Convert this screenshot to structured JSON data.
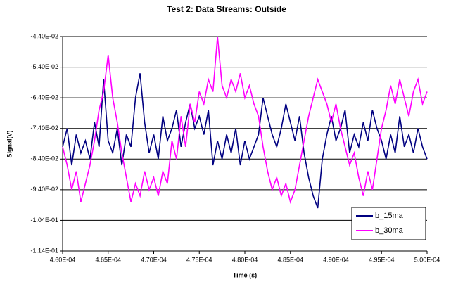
{
  "chart_data": {
    "type": "line",
    "title": "Test 2: Data Streams: Outside",
    "x_label": "Time (s)",
    "y_label": "Signal(V)",
    "x": [
      0.00046,
      0.0004605,
      0.000461,
      0.0004615,
      0.000462,
      0.0004625,
      0.000463,
      0.0004635,
      0.000464,
      0.0004645,
      0.000465,
      0.0004655,
      0.000466,
      0.0004665,
      0.000467,
      0.0004675,
      0.000468,
      0.0004685,
      0.000469,
      0.0004695,
      0.00047,
      0.0004705,
      0.000471,
      0.0004715,
      0.000472,
      0.0004725,
      0.000473,
      0.0004735,
      0.000474,
      0.0004745,
      0.000475,
      0.0004755,
      0.000476,
      0.0004765,
      0.000477,
      0.0004775,
      0.000478,
      0.0004785,
      0.000479,
      0.0004795,
      0.00048,
      0.0004805,
      0.000481,
      0.0004815,
      0.000482,
      0.0004825,
      0.000483,
      0.0004835,
      0.000484,
      0.0004845,
      0.000485,
      0.0004855,
      0.000486,
      0.0004865,
      0.000487,
      0.0004875,
      0.000488,
      0.0004885,
      0.000489,
      0.0004895,
      0.00049,
      0.0004905,
      0.000491,
      0.0004915,
      0.000492,
      0.0004925,
      0.000493,
      0.0004935,
      0.000494,
      0.0004945,
      0.000495,
      0.0004955,
      0.000496,
      0.0004965,
      0.000497,
      0.0004975,
      0.000498,
      0.0004985,
      0.000499,
      0.0004995,
      0.0005
    ],
    "series": [
      {
        "name": "b_15ma",
        "color": "#000080",
        "values": [
          -0.08,
          -0.074,
          -0.086,
          -0.076,
          -0.082,
          -0.078,
          -0.084,
          -0.072,
          -0.08,
          -0.058,
          -0.078,
          -0.082,
          -0.074,
          -0.086,
          -0.076,
          -0.08,
          -0.064,
          -0.056,
          -0.072,
          -0.082,
          -0.076,
          -0.084,
          -0.07,
          -0.078,
          -0.074,
          -0.068,
          -0.08,
          -0.072,
          -0.066,
          -0.074,
          -0.07,
          -0.076,
          -0.068,
          -0.086,
          -0.078,
          -0.084,
          -0.076,
          -0.082,
          -0.074,
          -0.086,
          -0.078,
          -0.084,
          -0.08,
          -0.076,
          -0.064,
          -0.07,
          -0.076,
          -0.08,
          -0.074,
          -0.066,
          -0.072,
          -0.078,
          -0.07,
          -0.082,
          -0.09,
          -0.096,
          -0.1,
          -0.084,
          -0.076,
          -0.07,
          -0.078,
          -0.074,
          -0.068,
          -0.082,
          -0.076,
          -0.08,
          -0.072,
          -0.078,
          -0.068,
          -0.074,
          -0.078,
          -0.084,
          -0.076,
          -0.082,
          -0.07,
          -0.08,
          -0.076,
          -0.082,
          -0.074,
          -0.08,
          -0.084
        ]
      },
      {
        "name": "b_30ma",
        "color": "#ff00ff",
        "values": [
          -0.08,
          -0.086,
          -0.094,
          -0.088,
          -0.098,
          -0.092,
          -0.086,
          -0.078,
          -0.068,
          -0.062,
          -0.05,
          -0.064,
          -0.072,
          -0.082,
          -0.09,
          -0.098,
          -0.092,
          -0.096,
          -0.088,
          -0.094,
          -0.09,
          -0.096,
          -0.088,
          -0.092,
          -0.078,
          -0.084,
          -0.07,
          -0.08,
          -0.066,
          -0.072,
          -0.062,
          -0.066,
          -0.058,
          -0.062,
          -0.044,
          -0.06,
          -0.064,
          -0.058,
          -0.062,
          -0.056,
          -0.064,
          -0.06,
          -0.066,
          -0.07,
          -0.08,
          -0.088,
          -0.094,
          -0.09,
          -0.096,
          -0.092,
          -0.098,
          -0.094,
          -0.086,
          -0.078,
          -0.07,
          -0.064,
          -0.058,
          -0.062,
          -0.066,
          -0.072,
          -0.066,
          -0.074,
          -0.08,
          -0.086,
          -0.082,
          -0.09,
          -0.096,
          -0.088,
          -0.094,
          -0.084,
          -0.074,
          -0.068,
          -0.06,
          -0.066,
          -0.058,
          -0.064,
          -0.07,
          -0.062,
          -0.058,
          -0.066,
          -0.062
        ]
      }
    ],
    "xlim": [
      0.00046,
      0.0005
    ],
    "xticks": [
      {
        "value": 0.00046,
        "label": "4.60E-04"
      },
      {
        "value": 0.000465,
        "label": "4.65E-04"
      },
      {
        "value": 0.00047,
        "label": "4.70E-04"
      },
      {
        "value": 0.000475,
        "label": "4.75E-04"
      },
      {
        "value": 0.00048,
        "label": "4.80E-04"
      },
      {
        "value": 0.000485,
        "label": "4.85E-04"
      },
      {
        "value": 0.00049,
        "label": "4.90E-04"
      },
      {
        "value": 0.000495,
        "label": "4.95E-04"
      },
      {
        "value": 0.0005,
        "label": "5.00E-04"
      }
    ],
    "ylim": [
      -0.114,
      -0.044
    ],
    "yticks": [
      {
        "value": -0.044,
        "label": "-4.40E-02"
      },
      {
        "value": -0.054,
        "label": "-5.40E-02"
      },
      {
        "value": -0.064,
        "label": "-6.40E-02"
      },
      {
        "value": -0.074,
        "label": "-7.40E-02"
      },
      {
        "value": -0.084,
        "label": "-8.40E-02"
      },
      {
        "value": -0.094,
        "label": "-9.40E-02"
      },
      {
        "value": -0.104,
        "label": "-1.04E-01"
      },
      {
        "value": -0.114,
        "label": "-1.14E-01"
      }
    ],
    "grid": true,
    "legend": "lower right"
  }
}
